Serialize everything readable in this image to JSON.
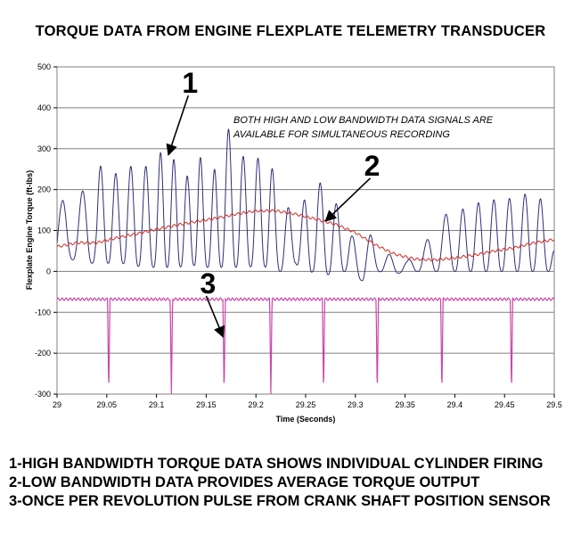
{
  "title": "TORQUE DATA FROM ENGINE FLEXPLATE TELEMETRY TRANSDUCER",
  "notes": [
    "1-HIGH BANDWIDTH TORQUE DATA SHOWS INDIVIDUAL CYLINDER FIRING",
    "2-LOW BANDWIDTH DATA PROVIDES AVERAGE TORQUE OUTPUT",
    "3-ONCE PER REVOLUTION PULSE FROM CRANK SHAFT POSITION SENSOR"
  ],
  "chart_data": {
    "type": "line",
    "xlabel": "Time (Seconds)",
    "ylabel": "Flexplate Engine Torque (ft-lbs)",
    "xlim": [
      29,
      29.5
    ],
    "ylim": [
      -300,
      500
    ],
    "xticks": [
      29,
      29.05,
      29.1,
      29.15,
      29.2,
      29.25,
      29.3,
      29.35,
      29.4,
      29.45,
      29.5
    ],
    "xtick_labels": [
      "29",
      "29.05",
      "29.1",
      "29.15",
      "29.2",
      "29.25",
      "29.3",
      "29.35",
      "29.4",
      "29.45",
      "29.5"
    ],
    "yticks": [
      -300,
      -200,
      -100,
      0,
      100,
      200,
      300,
      400,
      500
    ],
    "ytick_labels": [
      "-300",
      "-200",
      "-100",
      "0",
      "100",
      "200",
      "300",
      "400",
      "500"
    ],
    "grid": "horizontal",
    "annotation_text": [
      "BOTH HIGH AND LOW BANDWIDTH DATA SIGNALS ARE",
      "AVAILABLE FOR SIMULTANEOUS RECORDING"
    ],
    "callouts": [
      {
        "label": "1",
        "from": [
          29.132,
          430
        ],
        "to": [
          29.112,
          285
        ]
      },
      {
        "label": "2",
        "from": [
          29.315,
          228
        ],
        "to": [
          29.27,
          123
        ]
      },
      {
        "label": "3",
        "from": [
          29.15,
          -60
        ],
        "to": [
          29.167,
          -160
        ]
      }
    ],
    "series": [
      {
        "color": "#2e2e7a",
        "peaks": [
          [
            29.0,
            175
          ],
          [
            29.02,
            170
          ],
          [
            29.04,
            265
          ],
          [
            29.055,
            235
          ],
          [
            29.077,
            260
          ],
          [
            29.097,
            255
          ],
          [
            29.107,
            305
          ],
          [
            29.132,
            230
          ],
          [
            29.142,
            310
          ],
          [
            29.152,
            175
          ],
          [
            29.162,
            295
          ],
          [
            29.167,
            375
          ],
          [
            29.185,
            285
          ],
          [
            29.197,
            265
          ],
          [
            29.212,
            300
          ],
          [
            29.225,
            160
          ],
          [
            29.231,
            155
          ],
          [
            29.246,
            165
          ],
          [
            29.253,
            190
          ],
          [
            29.262,
            225
          ],
          [
            29.279,
            170
          ],
          [
            29.285,
            155
          ],
          [
            29.297,
            85
          ],
          [
            29.315,
            90
          ],
          [
            29.331,
            45
          ],
          [
            29.352,
            25
          ],
          [
            29.37,
            70
          ],
          [
            29.38,
            105
          ],
          [
            29.399,
            165
          ],
          [
            29.405,
            150
          ],
          [
            29.417,
            160
          ],
          [
            29.43,
            175
          ],
          [
            29.445,
            175
          ],
          [
            29.46,
            180
          ],
          [
            29.478,
            195
          ],
          [
            29.492,
            165
          ],
          [
            29.5,
            60
          ]
        ],
        "troughs": [
          [
            29.0,
            0
          ],
          [
            29.013,
            30
          ],
          [
            29.03,
            20
          ],
          [
            29.048,
            20
          ],
          [
            29.065,
            20
          ],
          [
            29.087,
            10
          ],
          [
            29.101,
            10
          ],
          [
            29.12,
            10
          ],
          [
            29.137,
            15
          ],
          [
            29.147,
            10
          ],
          [
            29.157,
            10
          ],
          [
            29.165,
            10
          ],
          [
            29.178,
            10
          ],
          [
            29.191,
            10
          ],
          [
            29.206,
            15
          ],
          [
            29.218,
            0
          ],
          [
            29.228,
            0
          ],
          [
            29.24,
            20
          ],
          [
            29.25,
            -20
          ],
          [
            29.257,
            0
          ],
          [
            29.27,
            -10
          ],
          [
            29.282,
            0
          ],
          [
            29.291,
            0
          ],
          [
            29.308,
            -25
          ],
          [
            29.322,
            0
          ],
          [
            29.341,
            -5
          ],
          [
            29.362,
            0
          ],
          [
            29.375,
            0
          ],
          [
            29.39,
            0
          ],
          [
            29.402,
            0
          ],
          [
            29.412,
            0
          ],
          [
            29.424,
            0
          ],
          [
            29.437,
            0
          ],
          [
            29.452,
            0
          ],
          [
            29.469,
            0
          ],
          [
            29.486,
            0
          ],
          [
            29.5,
            0
          ]
        ],
        "cycles": [
          [
            29.0,
            29.005,
            4.2
          ],
          [
            29.005,
            29.04,
            5.1
          ],
          [
            29.04,
            29.1,
            6.6
          ],
          [
            29.1,
            29.16,
            7.4
          ],
          [
            29.16,
            29.22,
            6.8
          ],
          [
            29.22,
            29.3,
            6.2
          ],
          [
            29.3,
            29.4,
            5.3
          ],
          [
            29.4,
            29.5,
            6.4
          ]
        ]
      },
      {
        "color": "#d42a1e",
        "x": [
          29.0,
          29.02,
          29.04,
          29.06,
          29.08,
          29.1,
          29.12,
          29.14,
          29.16,
          29.18,
          29.2,
          29.22,
          29.24,
          29.26,
          29.28,
          29.3,
          29.32,
          29.34,
          29.36,
          29.38,
          29.4,
          29.42,
          29.44,
          29.46,
          29.48,
          29.5
        ],
        "y": [
          60,
          70,
          70,
          82,
          92,
          103,
          113,
          122,
          130,
          140,
          148,
          148,
          140,
          128,
          115,
          95,
          65,
          42,
          30,
          28,
          33,
          40,
          50,
          58,
          70,
          78
        ]
      },
      {
        "color": "#cc44aa",
        "baseline": -68,
        "ripple_amplitude": 3,
        "pulses": [
          29.052,
          29.115,
          29.168,
          29.215,
          29.268,
          29.322,
          29.387,
          29.457
        ],
        "pulse_low": -300
      }
    ]
  }
}
